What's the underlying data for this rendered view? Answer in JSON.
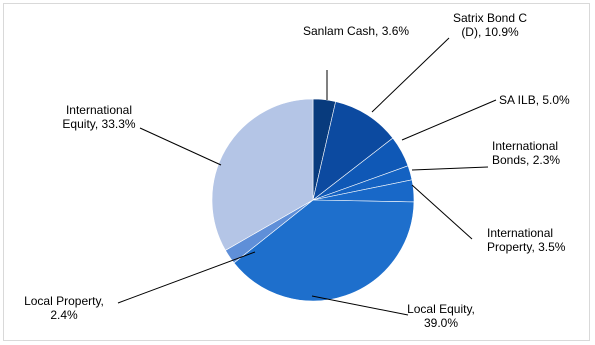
{
  "chart_data": {
    "type": "pie",
    "title": "",
    "slices": [
      {
        "label": "Sanlam Cash, 3.6%",
        "value": 3.6,
        "color": "#083b7d"
      },
      {
        "label": "Satrix Bond C (D), 10.9%",
        "value": 10.9,
        "color": "#0c4aa0"
      },
      {
        "label": "SA ILB, 5.0%",
        "value": 5.0,
        "color": "#0f58b6"
      },
      {
        "label": "International Bonds, 2.3%",
        "value": 2.3,
        "color": "#1462c2"
      },
      {
        "label": "International Property, 3.5%",
        "value": 3.5,
        "color": "#1868c8"
      },
      {
        "label": "Local Equity, 39.0%",
        "value": 39.0,
        "color": "#1e6fcc"
      },
      {
        "label": "Local Property, 2.4%",
        "value": 2.4,
        "color": "#5f8fd8"
      },
      {
        "label": "International Equity, 33.3%",
        "value": 33.3,
        "color": "#b4c5e6"
      }
    ]
  }
}
